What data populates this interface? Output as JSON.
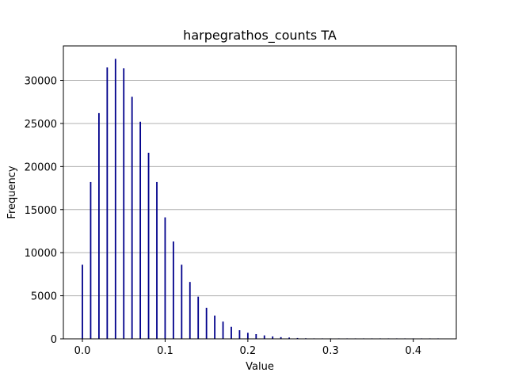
{
  "chart_data": {
    "type": "bar",
    "title": "harpegrathos_counts TA",
    "xlabel": "Value",
    "ylabel": "Frequency",
    "xlim": [
      -0.023,
      0.452
    ],
    "ylim": [
      0,
      34000
    ],
    "xticks": [
      0.0,
      0.1,
      0.2,
      0.3,
      0.4
    ],
    "xtick_labels": [
      "0.0",
      "0.1",
      "0.2",
      "0.3",
      "0.4"
    ],
    "yticks": [
      0,
      5000,
      10000,
      15000,
      20000,
      25000,
      30000
    ],
    "ytick_labels": [
      "0",
      "5000",
      "10000",
      "15000",
      "20000",
      "25000",
      "30000"
    ],
    "grid": "horizontal",
    "bar_color": "#00008b",
    "x": [
      0.0,
      0.01,
      0.02,
      0.03,
      0.04,
      0.05,
      0.06,
      0.07,
      0.08,
      0.09,
      0.1,
      0.11,
      0.12,
      0.13,
      0.14,
      0.15,
      0.16,
      0.17,
      0.18,
      0.19,
      0.2,
      0.21,
      0.22,
      0.23,
      0.24,
      0.25,
      0.26,
      0.27,
      0.28,
      0.29,
      0.3,
      0.31,
      0.32,
      0.33,
      0.34,
      0.35,
      0.36,
      0.37,
      0.38,
      0.39,
      0.4,
      0.41,
      0.42,
      0.43
    ],
    "values": [
      8600,
      18200,
      26200,
      31500,
      32500,
      31400,
      28100,
      25200,
      21600,
      18200,
      14100,
      11300,
      8600,
      6600,
      4900,
      3600,
      2700,
      2000,
      1400,
      1000,
      700,
      550,
      400,
      280,
      200,
      150,
      100,
      70,
      50,
      30,
      20,
      12,
      8,
      5,
      4,
      3,
      2,
      2,
      1,
      1,
      1,
      1,
      1,
      1
    ]
  }
}
